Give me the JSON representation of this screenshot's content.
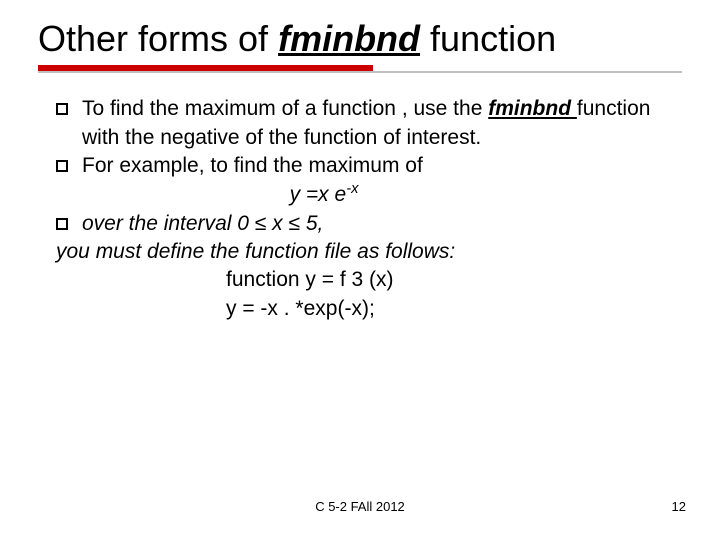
{
  "title": {
    "pre": "Other forms of ",
    "emph": "fminbnd",
    "post": " function"
  },
  "rule": {
    "red_color": "#cc0000",
    "gray_color": "#bfbfbf"
  },
  "bullets": {
    "b1_pre": "To find the maximum of a function , use the ",
    "b1_emph": "fminbnd ",
    "b1_post": "function with the negative of the function of interest.",
    "b2": "For example, to find the maximum of",
    "eq_pre": "y =x e",
    "eq_sup": "-x",
    "b3_pre": "over the interval    ",
    "b3_range": "0 ≤ x ≤ 5,",
    "note": "you must define the function file as follows:",
    "code1": "function y = f 3 (x)",
    "code2": "y = -x . *exp(-x);"
  },
  "footer": {
    "center": "C 5-2 FAll 2012",
    "page": "12"
  }
}
